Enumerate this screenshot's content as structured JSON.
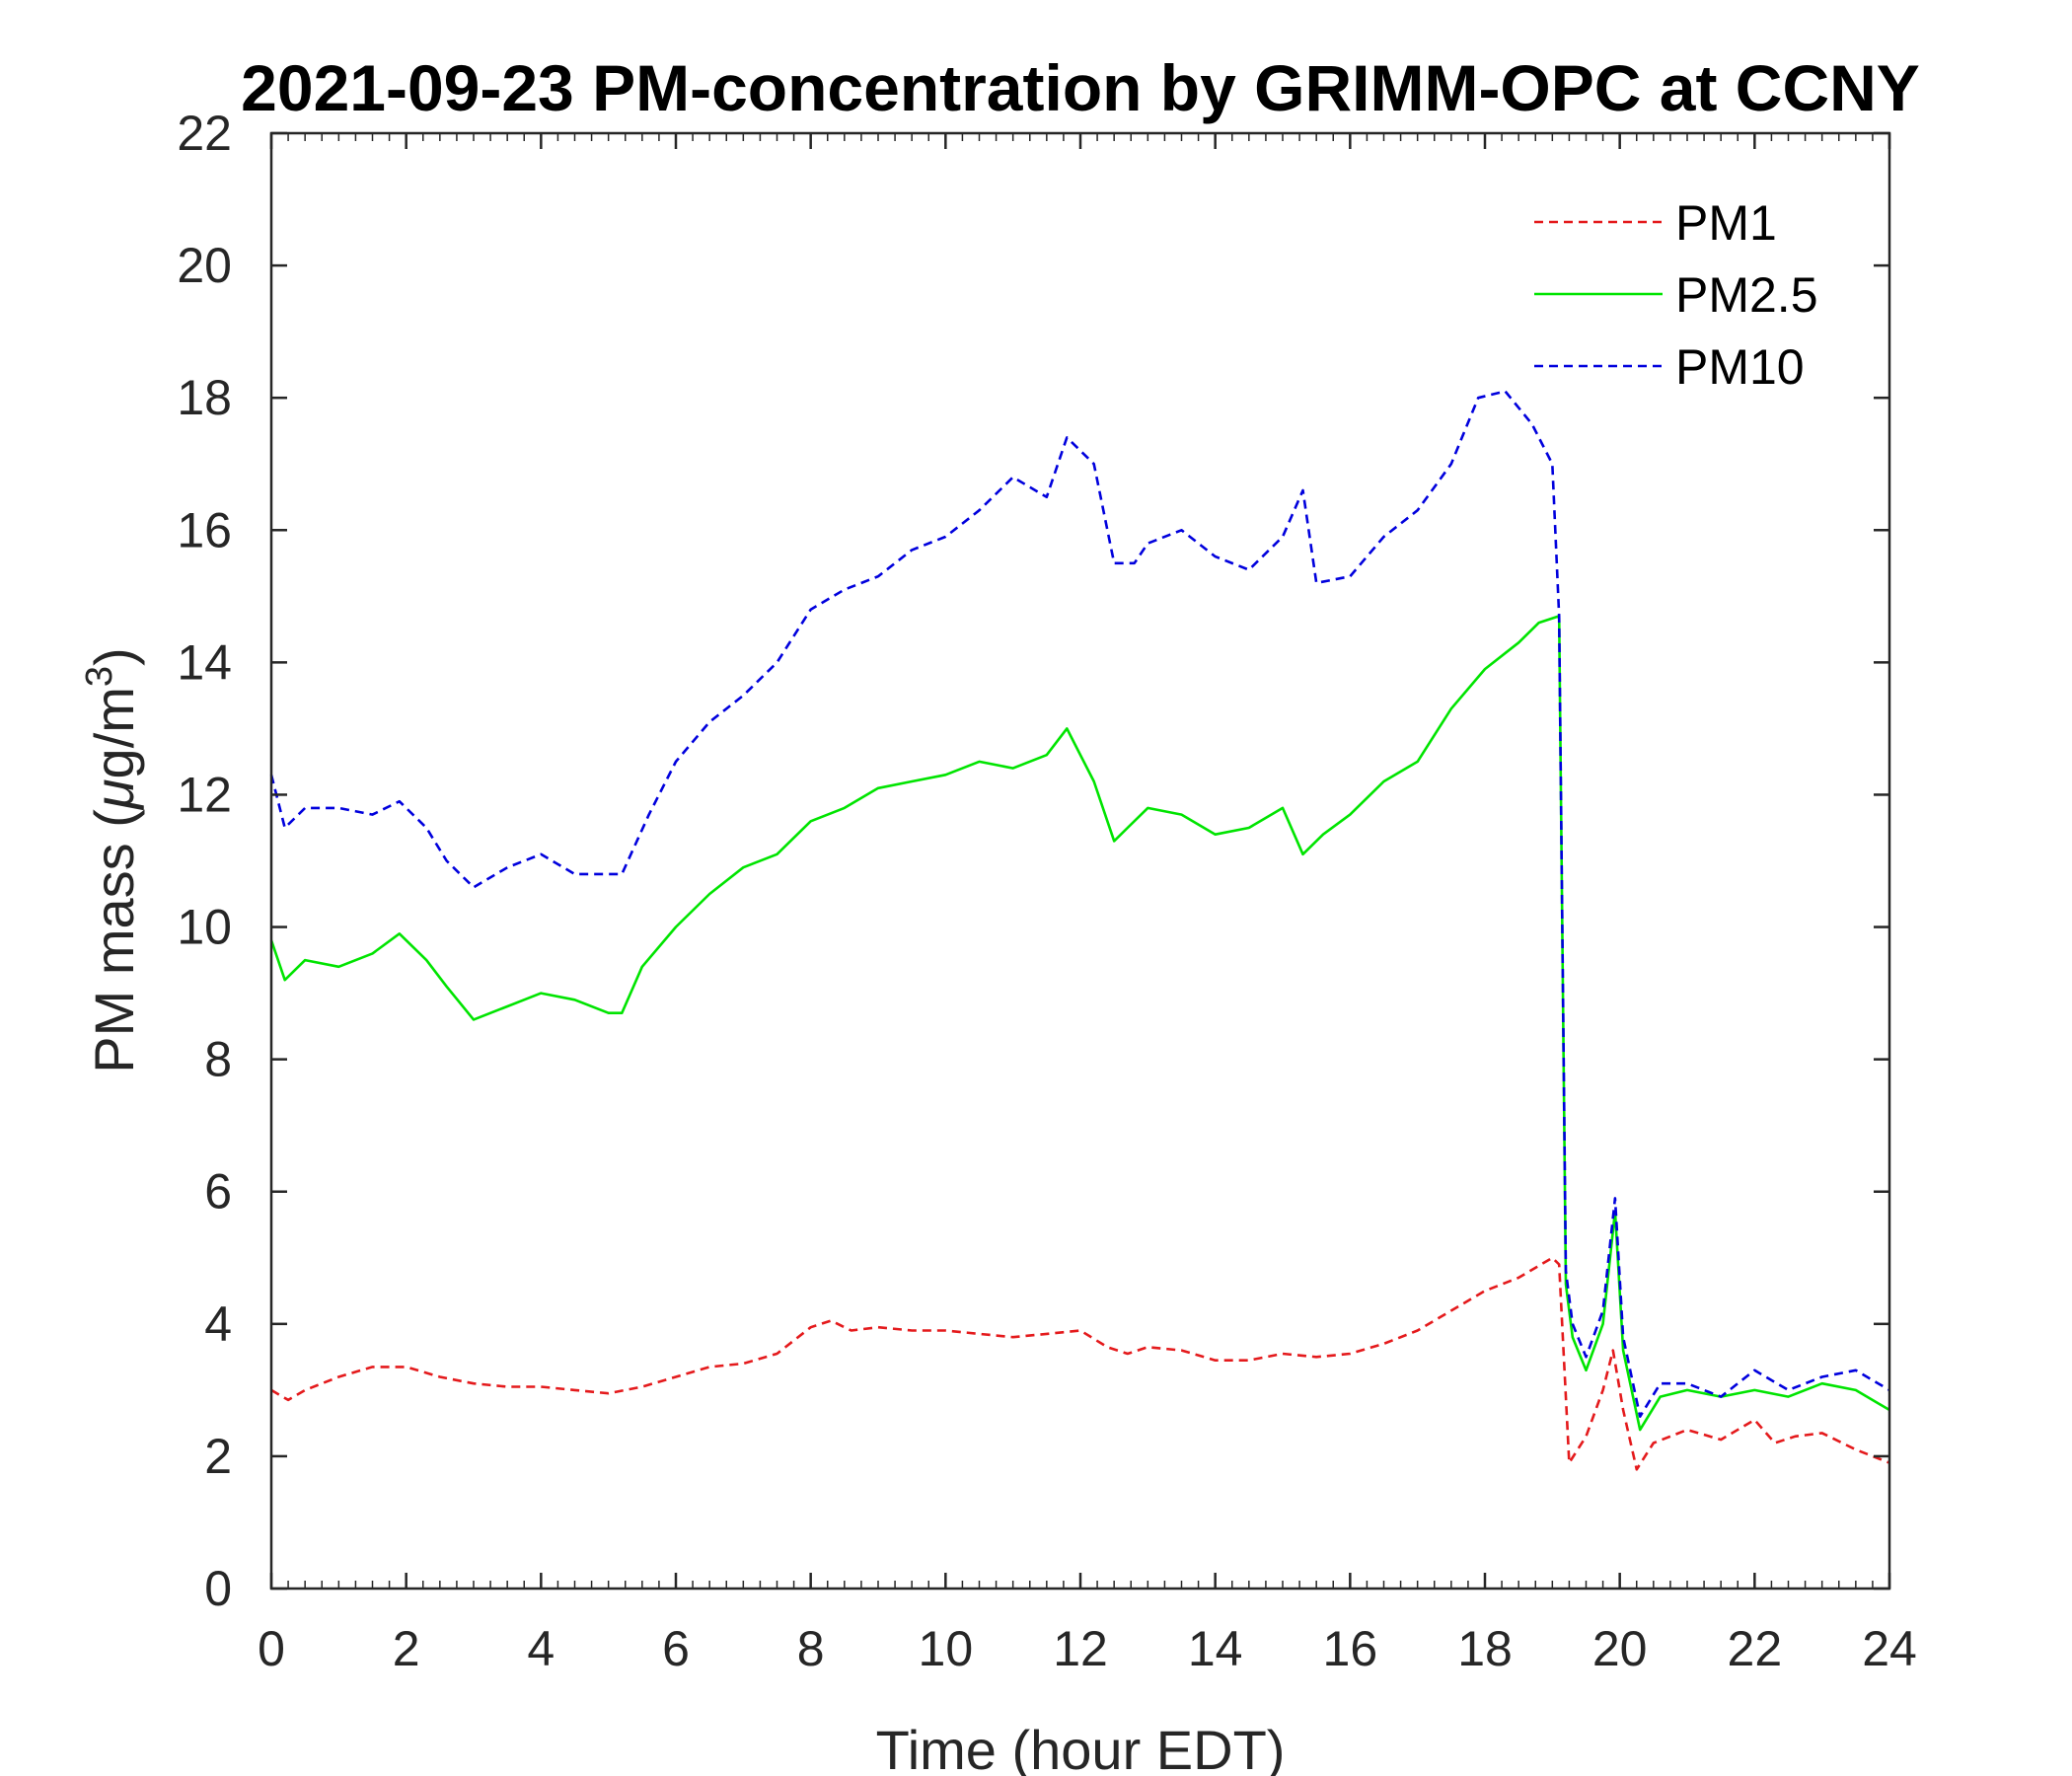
{
  "chart_data": {
    "type": "line",
    "title": "2021-09-23 PM-concentration by GRIMM-OPC at CCNY",
    "xlabel": "Time (hour EDT)",
    "ylabel_prefix": "PM mass (",
    "ylabel_mu": "μ",
    "ylabel_unit": "g/m",
    "ylabel_sup": "3",
    "ylabel_suffix": ")",
    "xlim": [
      0,
      24
    ],
    "ylim": [
      0,
      22
    ],
    "xticks": [
      0,
      2,
      4,
      6,
      8,
      10,
      12,
      14,
      16,
      18,
      20,
      22,
      24
    ],
    "yticks": [
      0,
      2,
      4,
      6,
      8,
      10,
      12,
      14,
      16,
      18,
      20,
      22
    ],
    "legend_position": "top-right",
    "grid": false,
    "series": [
      {
        "name": "PM1",
        "color": "#e41a1c",
        "style": "dashed",
        "x": [
          0,
          0.25,
          0.5,
          1,
          1.5,
          2,
          2.5,
          3,
          3.5,
          4,
          4.5,
          5,
          5.5,
          6,
          6.5,
          7,
          7.5,
          8,
          8.3,
          8.6,
          9,
          9.5,
          10,
          10.5,
          11,
          11.5,
          12,
          12.4,
          12.7,
          13,
          13.5,
          14,
          14.5,
          15,
          15.5,
          16,
          16.5,
          17,
          17.5,
          18,
          18.5,
          19,
          19.1,
          19.25,
          19.5,
          19.75,
          19.9,
          20.05,
          20.25,
          20.5,
          21,
          21.5,
          22,
          22.3,
          22.6,
          23,
          23.5,
          24
        ],
        "values": [
          3.0,
          2.85,
          3.0,
          3.2,
          3.35,
          3.35,
          3.2,
          3.1,
          3.05,
          3.05,
          3.0,
          2.95,
          3.05,
          3.2,
          3.35,
          3.4,
          3.55,
          3.95,
          4.05,
          3.9,
          3.95,
          3.9,
          3.9,
          3.85,
          3.8,
          3.85,
          3.9,
          3.65,
          3.55,
          3.65,
          3.6,
          3.45,
          3.45,
          3.55,
          3.5,
          3.55,
          3.7,
          3.9,
          4.2,
          4.5,
          4.7,
          5.0,
          4.9,
          1.9,
          2.3,
          3.0,
          3.6,
          2.7,
          1.8,
          2.2,
          2.4,
          2.25,
          2.55,
          2.2,
          2.3,
          2.35,
          2.1,
          1.9
        ]
      },
      {
        "name": "PM2.5",
        "color": "#00e400",
        "style": "solid",
        "x": [
          0,
          0.2,
          0.5,
          1,
          1.5,
          1.9,
          2.3,
          2.6,
          3,
          3.5,
          4,
          4.5,
          5,
          5.2,
          5.5,
          6,
          6.5,
          7,
          7.5,
          8,
          8.5,
          9,
          9.5,
          10,
          10.5,
          11,
          11.5,
          11.8,
          12.2,
          12.5,
          12.7,
          13,
          13.5,
          14,
          14.5,
          15,
          15.3,
          15.6,
          16,
          16.5,
          17,
          17.5,
          18,
          18.5,
          18.8,
          19.1,
          19.2,
          19.3,
          19.5,
          19.75,
          19.93,
          20.05,
          20.3,
          20.6,
          21,
          21.5,
          22,
          22.5,
          23,
          23.5,
          24
        ],
        "values": [
          9.8,
          9.2,
          9.5,
          9.4,
          9.6,
          9.9,
          9.5,
          9.1,
          8.6,
          8.8,
          9.0,
          8.9,
          8.7,
          8.7,
          9.4,
          10.0,
          10.5,
          10.9,
          11.1,
          11.6,
          11.8,
          12.1,
          12.2,
          12.3,
          12.5,
          12.4,
          12.6,
          13.0,
          12.2,
          11.3,
          11.5,
          11.8,
          11.7,
          11.4,
          11.5,
          11.8,
          11.1,
          11.4,
          11.7,
          12.2,
          12.5,
          13.3,
          13.9,
          14.3,
          14.6,
          14.7,
          4.6,
          3.8,
          3.3,
          4.0,
          5.7,
          3.6,
          2.4,
          2.9,
          3.0,
          2.9,
          3.0,
          2.9,
          3.1,
          3.0,
          2.7
        ]
      },
      {
        "name": "PM10",
        "color": "#0000dd",
        "style": "dashed",
        "x": [
          0,
          0.2,
          0.5,
          1,
          1.5,
          1.9,
          2.3,
          2.6,
          3,
          3.5,
          4,
          4.5,
          5,
          5.2,
          5.6,
          6,
          6.5,
          7,
          7.5,
          8,
          8.5,
          9,
          9.5,
          10,
          10.5,
          11,
          11.5,
          11.8,
          12.2,
          12.5,
          12.8,
          13,
          13.5,
          14,
          14.5,
          15,
          15.3,
          15.5,
          16,
          16.5,
          17,
          17.5,
          17.9,
          18.3,
          18.7,
          19.0,
          19.1,
          19.2,
          19.3,
          19.5,
          19.75,
          19.93,
          20.05,
          20.3,
          20.6,
          21,
          21.5,
          22,
          22.5,
          23,
          23.5,
          24
        ],
        "values": [
          12.3,
          11.5,
          11.8,
          11.8,
          11.7,
          11.9,
          11.5,
          11.0,
          10.6,
          10.9,
          11.1,
          10.8,
          10.8,
          10.8,
          11.7,
          12.5,
          13.1,
          13.5,
          14.0,
          14.8,
          15.1,
          15.3,
          15.7,
          15.9,
          16.3,
          16.8,
          16.5,
          17.4,
          17.0,
          15.5,
          15.5,
          15.8,
          16.0,
          15.6,
          15.4,
          15.9,
          16.6,
          15.2,
          15.3,
          15.9,
          16.3,
          17.0,
          18.0,
          18.1,
          17.6,
          17.0,
          14.7,
          4.8,
          4.0,
          3.5,
          4.2,
          5.9,
          3.8,
          2.6,
          3.1,
          3.1,
          2.9,
          3.3,
          3.0,
          3.2,
          3.3,
          3.0
        ]
      }
    ]
  }
}
